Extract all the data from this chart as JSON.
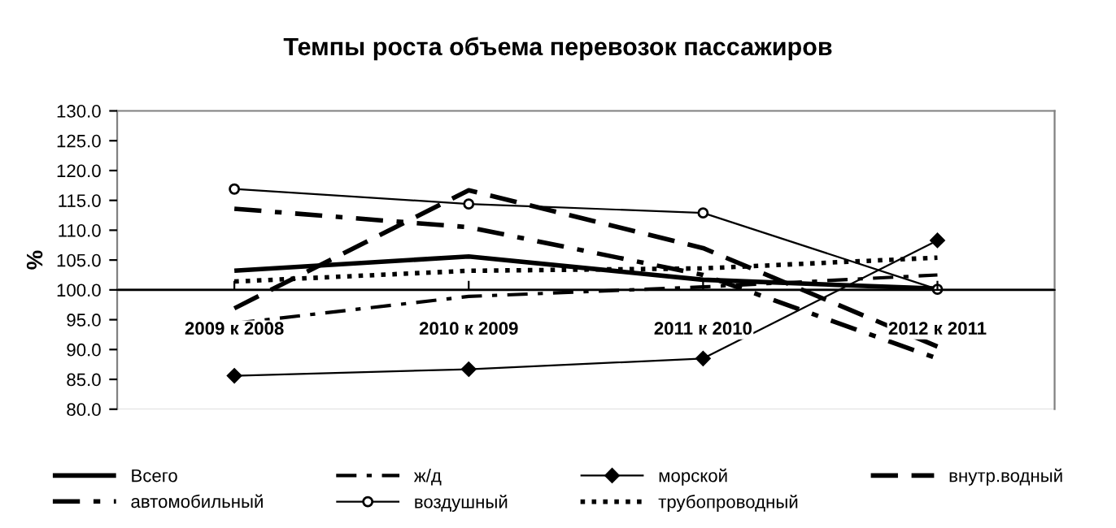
{
  "chart_data": {
    "type": "line",
    "title": "Темпы роста объема перевозок пассажиров",
    "ylabel": "%",
    "categories": [
      "2009 к 2008",
      "2010 к 2009",
      "2011 к 2010",
      "2012 к 2011"
    ],
    "series": [
      {
        "name": "Всего",
        "color": "#000000",
        "values": [
          103.2,
          105.6,
          101.7,
          100.2
        ],
        "line_style": "solid",
        "marker": "none"
      },
      {
        "name": "ж/д",
        "color": "#000000",
        "values": [
          94.4,
          98.9,
          100.5,
          102.5
        ],
        "line_style": "dashdot",
        "marker": "none"
      },
      {
        "name": "морской",
        "color": "#000000",
        "values": [
          85.6,
          86.7,
          88.5,
          108.3
        ],
        "line_style": "solid",
        "marker": "diamond"
      },
      {
        "name": "внутр.водный",
        "color": "#000000",
        "values": [
          96.9,
          116.7,
          107.0,
          90.5
        ],
        "line_style": "dashed",
        "marker": "none"
      },
      {
        "name": "автомобильный",
        "color": "#000000",
        "values": [
          113.6,
          110.5,
          102.5,
          88.5
        ],
        "line_style": "dashdot",
        "marker": "none"
      },
      {
        "name": "воздушный",
        "color": "#000000",
        "values": [
          116.9,
          114.4,
          112.9,
          100.1
        ],
        "line_style": "solid",
        "marker": "circle"
      },
      {
        "name": "трубопроводный",
        "color": "#000000",
        "values": [
          101.4,
          103.2,
          103.6,
          105.4
        ],
        "line_style": "dotted",
        "marker": "none"
      }
    ],
    "ylim": [
      80,
      130
    ],
    "yticks": [
      {
        "value": 80,
        "label": "80.0"
      },
      {
        "value": 85,
        "label": "85.0"
      },
      {
        "value": 90,
        "label": "90.0"
      },
      {
        "value": 95,
        "label": "95.0"
      },
      {
        "value": 100,
        "label": "100.0"
      },
      {
        "value": 105,
        "label": "105.0"
      },
      {
        "value": 110,
        "label": "110.0"
      },
      {
        "value": 115,
        "label": "115.0"
      },
      {
        "value": 120,
        "label": "120.0"
      },
      {
        "value": 125,
        "label": "125.0"
      },
      {
        "value": 130,
        "label": "130.0"
      }
    ],
    "ref_lines": [
      {
        "axis": "y",
        "value": 100
      }
    ],
    "grid": false,
    "legend": "bottom"
  }
}
